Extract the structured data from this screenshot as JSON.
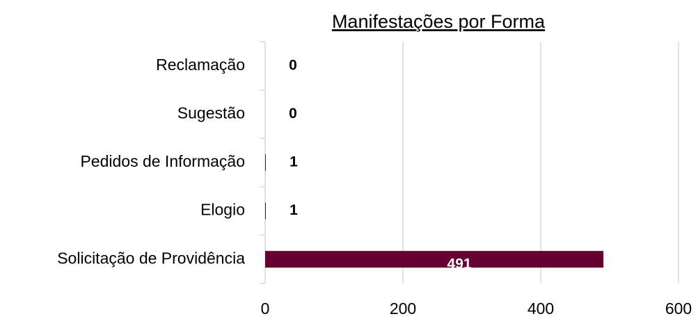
{
  "chart_data": {
    "type": "bar",
    "orientation": "horizontal",
    "title": "Manifestações por Forma",
    "categories": [
      "Reclamação",
      "Sugestão",
      "Pedidos de Informação",
      "Elogio",
      "Solicitação de Providência"
    ],
    "values": [
      0,
      0,
      1,
      1,
      491
    ],
    "color": "#660033",
    "xlim": [
      0,
      600
    ],
    "xticks": [
      0,
      200,
      400,
      600
    ],
    "grid": true
  }
}
